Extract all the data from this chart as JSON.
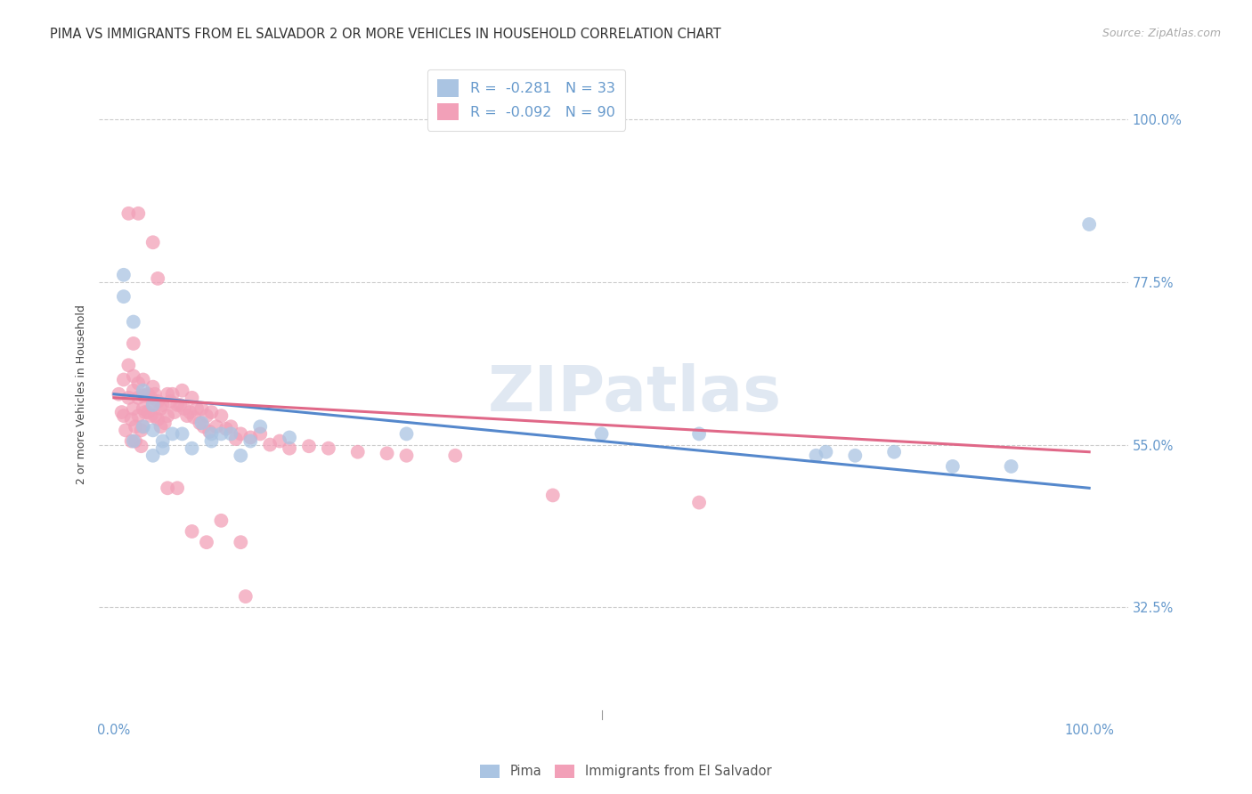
{
  "title": "PIMA VS IMMIGRANTS FROM EL SALVADOR 2 OR MORE VEHICLES IN HOUSEHOLD CORRELATION CHART",
  "source": "Source: ZipAtlas.com",
  "ylabel": "2 or more Vehicles in Household",
  "ytick_labels": [
    "32.5%",
    "55.0%",
    "77.5%",
    "100.0%"
  ],
  "ytick_values": [
    0.325,
    0.55,
    0.775,
    1.0
  ],
  "xlim": [
    -0.015,
    1.04
  ],
  "ylim": [
    0.17,
    1.07
  ],
  "color_pima": "#aac4e2",
  "color_el_salvador": "#f2a0b8",
  "color_line_pima": "#5588cc",
  "color_line_el_salvador": "#e06888",
  "color_axis_text": "#6699cc",
  "background_color": "#ffffff",
  "grid_color": "#cccccc",
  "watermark_color": "#ccd9ea",
  "pima_x": [
    0.01,
    0.01,
    0.02,
    0.02,
    0.03,
    0.03,
    0.04,
    0.04,
    0.04,
    0.05,
    0.05,
    0.06,
    0.07,
    0.08,
    0.09,
    0.1,
    0.1,
    0.11,
    0.12,
    0.13,
    0.14,
    0.15,
    0.18,
    0.3,
    0.5,
    0.6,
    0.72,
    0.73,
    0.76,
    0.8,
    0.86,
    0.92,
    1.0
  ],
  "pima_y": [
    0.785,
    0.755,
    0.72,
    0.555,
    0.625,
    0.575,
    0.605,
    0.57,
    0.535,
    0.555,
    0.545,
    0.565,
    0.565,
    0.545,
    0.58,
    0.565,
    0.555,
    0.565,
    0.565,
    0.535,
    0.555,
    0.575,
    0.56,
    0.565,
    0.565,
    0.565,
    0.535,
    0.54,
    0.535,
    0.54,
    0.52,
    0.52,
    0.855
  ],
  "es_x": [
    0.005,
    0.008,
    0.01,
    0.01,
    0.012,
    0.015,
    0.015,
    0.018,
    0.018,
    0.02,
    0.02,
    0.02,
    0.022,
    0.022,
    0.025,
    0.025,
    0.025,
    0.028,
    0.028,
    0.03,
    0.03,
    0.03,
    0.03,
    0.032,
    0.032,
    0.035,
    0.035,
    0.038,
    0.038,
    0.04,
    0.04,
    0.042,
    0.042,
    0.045,
    0.045,
    0.048,
    0.048,
    0.05,
    0.052,
    0.055,
    0.055,
    0.058,
    0.06,
    0.062,
    0.065,
    0.068,
    0.07,
    0.072,
    0.075,
    0.078,
    0.08,
    0.082,
    0.085,
    0.088,
    0.09,
    0.092,
    0.095,
    0.098,
    0.1,
    0.105,
    0.11,
    0.115,
    0.12,
    0.125,
    0.13,
    0.14,
    0.15,
    0.16,
    0.17,
    0.18,
    0.2,
    0.22,
    0.25,
    0.28,
    0.3,
    0.35,
    0.015,
    0.02,
    0.025,
    0.04,
    0.045,
    0.055,
    0.065,
    0.08,
    0.095,
    0.11,
    0.13,
    0.45,
    0.6,
    0.135
  ],
  "es_y": [
    0.62,
    0.595,
    0.64,
    0.59,
    0.57,
    0.66,
    0.615,
    0.585,
    0.555,
    0.645,
    0.625,
    0.6,
    0.575,
    0.555,
    0.635,
    0.615,
    0.59,
    0.57,
    0.548,
    0.64,
    0.618,
    0.6,
    0.575,
    0.618,
    0.595,
    0.62,
    0.595,
    0.615,
    0.59,
    0.63,
    0.605,
    0.62,
    0.59,
    0.61,
    0.585,
    0.6,
    0.575,
    0.605,
    0.58,
    0.62,
    0.59,
    0.61,
    0.62,
    0.595,
    0.605,
    0.605,
    0.625,
    0.6,
    0.59,
    0.595,
    0.615,
    0.588,
    0.6,
    0.58,
    0.6,
    0.575,
    0.59,
    0.568,
    0.595,
    0.575,
    0.59,
    0.572,
    0.575,
    0.558,
    0.565,
    0.56,
    0.565,
    0.55,
    0.555,
    0.545,
    0.548,
    0.545,
    0.54,
    0.538,
    0.535,
    0.535,
    0.87,
    0.69,
    0.87,
    0.83,
    0.78,
    0.49,
    0.49,
    0.43,
    0.415,
    0.445,
    0.415,
    0.48,
    0.47,
    0.34
  ],
  "pima_line_x": [
    0.0,
    1.0
  ],
  "pima_line_y": [
    0.62,
    0.49
  ],
  "es_line_x": [
    0.0,
    1.0
  ],
  "es_line_y": [
    0.615,
    0.54
  ]
}
